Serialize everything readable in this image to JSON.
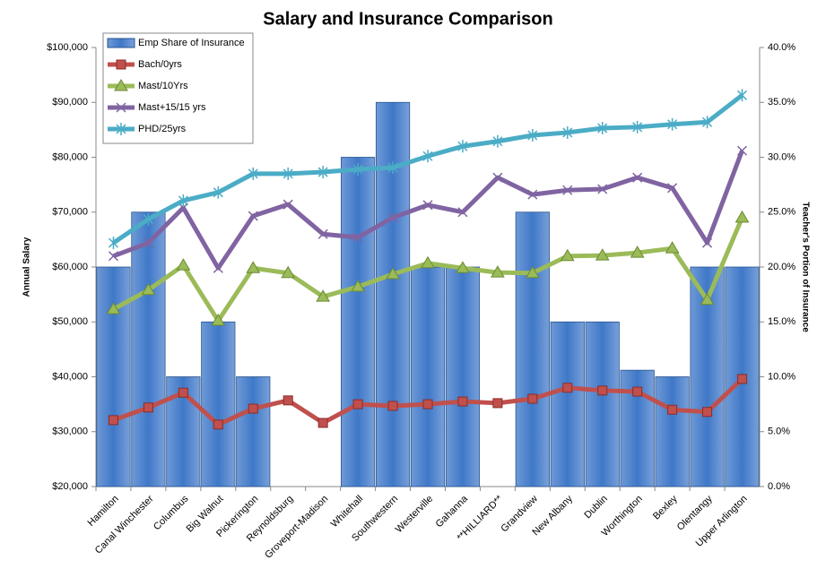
{
  "chart_data": {
    "type": "combo",
    "title": "Salary and Insurance Comparison",
    "y_label": "Annual Salary",
    "y2_label": "Teacher's Portion of Insurance",
    "legend": "upper left",
    "grid": false,
    "categories": [
      "Hamilton",
      "Canal Winchester",
      "Columbus",
      "Big Walnut",
      "Pickerington",
      "Reynoldsburg",
      "Groveport-Madison",
      "Whitehall",
      "Southwestern",
      "Westerville",
      "Gahanna",
      "**HILLIARD**",
      "Grandview",
      "New Albany",
      "Dublin",
      "Worthington",
      "Bexley",
      "Olentangy",
      "Upper Arlington"
    ],
    "ylim": [
      20000,
      100000
    ],
    "yticks": [
      {
        "value": 20000,
        "label": "$20,000"
      },
      {
        "value": 30000,
        "label": "$30,000"
      },
      {
        "value": 40000,
        "label": "$40,000"
      },
      {
        "value": 50000,
        "label": "$50,000"
      },
      {
        "value": 60000,
        "label": "$60,000"
      },
      {
        "value": 70000,
        "label": "$70,000"
      },
      {
        "value": 80000,
        "label": "$80,000"
      },
      {
        "value": 90000,
        "label": "$90,000"
      },
      {
        "value": 100000,
        "label": "$100,000"
      }
    ],
    "y2lim": [
      0,
      40
    ],
    "y2ticks": [
      {
        "value": 0,
        "label": "0.0%"
      },
      {
        "value": 5,
        "label": "5.0%"
      },
      {
        "value": 10,
        "label": "10.0%"
      },
      {
        "value": 15,
        "label": "15.0%"
      },
      {
        "value": 20,
        "label": "20.0%"
      },
      {
        "value": 25,
        "label": "25.0%"
      },
      {
        "value": 30,
        "label": "30.0%"
      },
      {
        "value": 35,
        "label": "35.0%"
      },
      {
        "value": 40,
        "label": "40.0%"
      }
    ],
    "series": [
      {
        "name": "Emp Share of Insurance",
        "type": "bar",
        "axis": "y2",
        "color": "#3f78c8",
        "values": [
          20,
          25,
          10,
          15,
          10,
          null,
          null,
          30,
          35,
          20,
          20,
          null,
          25,
          15,
          15,
          10.6,
          10,
          20,
          20
        ]
      },
      {
        "name": "Bach/0yrs",
        "type": "line",
        "marker": "square",
        "color": "#c0504d",
        "values": [
          32100,
          34400,
          37100,
          31300,
          34200,
          35700,
          31600,
          35000,
          34700,
          35000,
          35500,
          35200,
          36000,
          38000,
          37500,
          37300,
          34000,
          33600,
          39600
        ]
      },
      {
        "name": "Mast/10Yrs",
        "type": "line",
        "marker": "triangle",
        "color": "#9bbb59",
        "values": [
          52300,
          55800,
          60300,
          50200,
          59800,
          58900,
          54600,
          56400,
          58700,
          60700,
          59800,
          59000,
          58900,
          62000,
          62100,
          62600,
          63400,
          54000,
          69000
        ]
      },
      {
        "name": "Mast+15/15 yrs",
        "type": "line",
        "marker": "x",
        "color": "#8064a2",
        "values": [
          62000,
          64400,
          70800,
          59800,
          69300,
          71400,
          66000,
          65400,
          69000,
          71300,
          70000,
          76300,
          73200,
          74000,
          74200,
          76300,
          74400,
          64400,
          81200
        ]
      },
      {
        "name": "PHD/25yrs",
        "type": "line",
        "marker": "star",
        "color": "#4bacc6",
        "values": [
          64400,
          68700,
          72100,
          73600,
          77000,
          77000,
          77300,
          77800,
          78100,
          80200,
          82000,
          82900,
          84000,
          84500,
          85300,
          85500,
          86000,
          86400,
          91300
        ]
      }
    ]
  }
}
